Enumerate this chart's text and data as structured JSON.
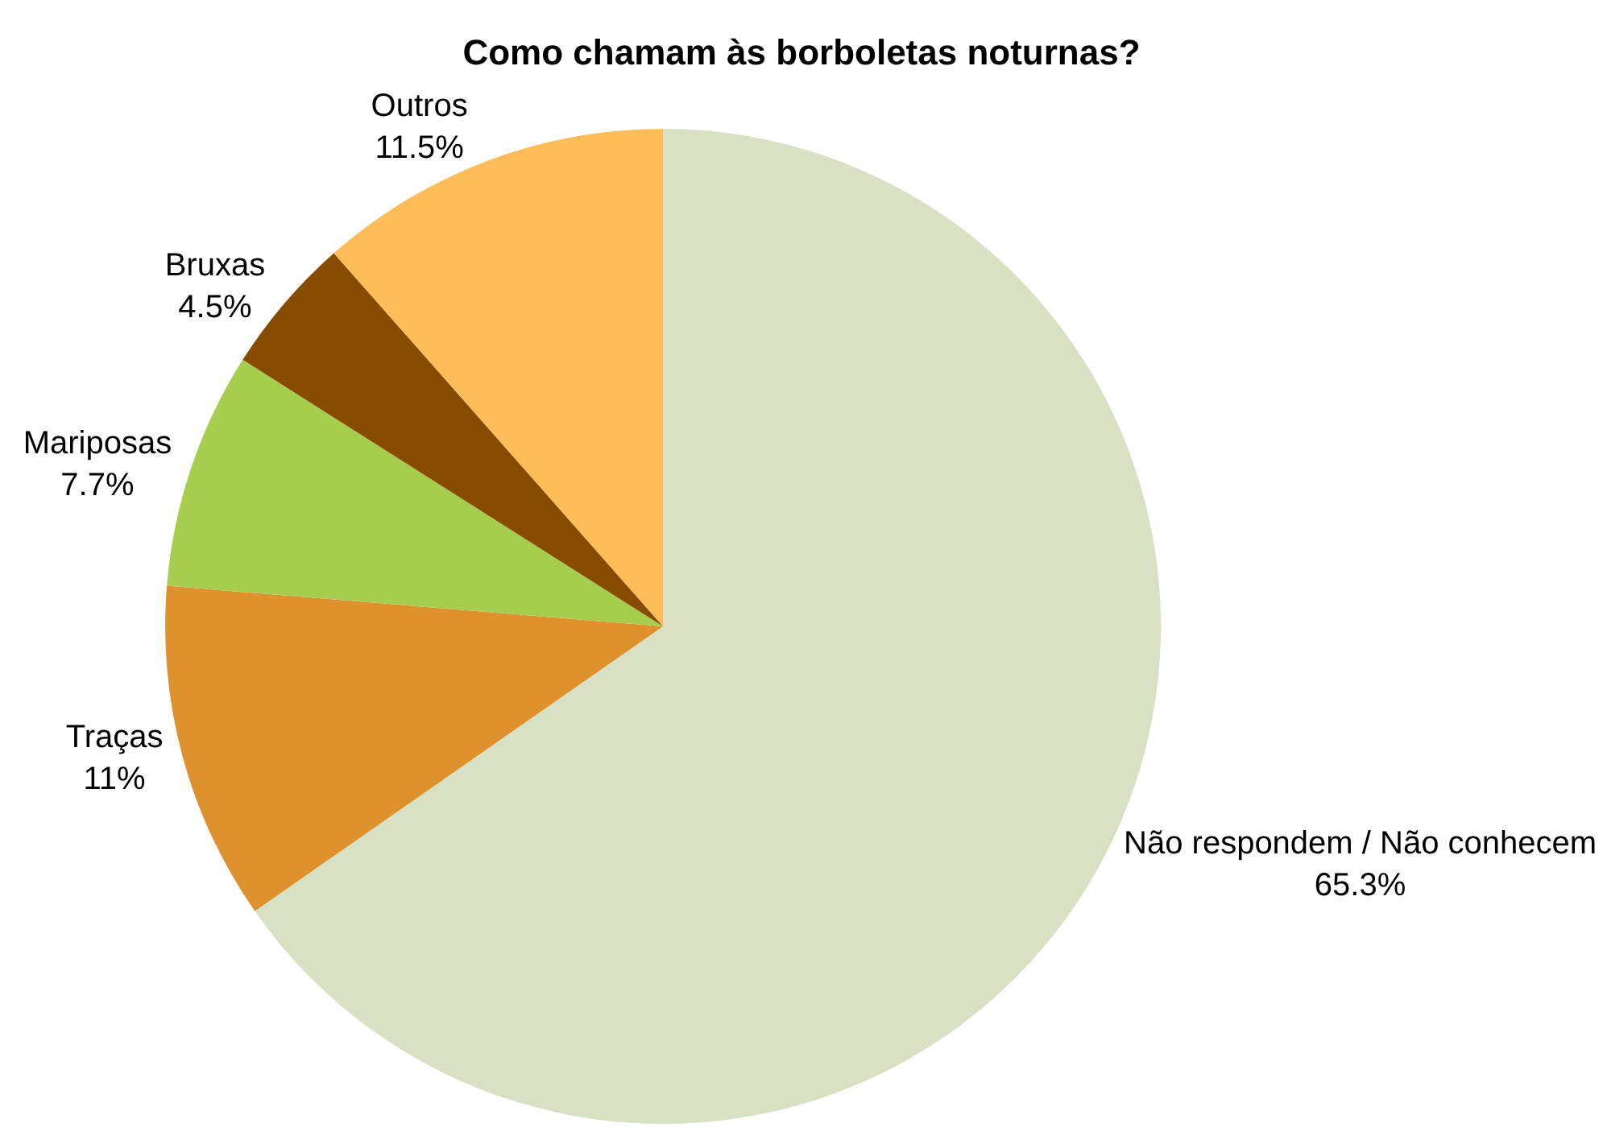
{
  "chart_data": {
    "type": "pie",
    "title": "Como chamam às borboletas noturnas?",
    "categories": [
      "Não respondem / Não conhecem",
      "Traças",
      "Mariposas",
      "Bruxas",
      "Outros"
    ],
    "values": [
      65.3,
      11,
      7.7,
      4.5,
      11.5
    ],
    "value_labels": [
      "65.3%",
      "11%",
      "7.7%",
      "4.5%",
      "11.5%"
    ],
    "colors": [
      "#d9e1c4",
      "#dd922e",
      "#a6cd4e",
      "#884c00",
      "#ffbd59"
    ],
    "legend": false
  }
}
